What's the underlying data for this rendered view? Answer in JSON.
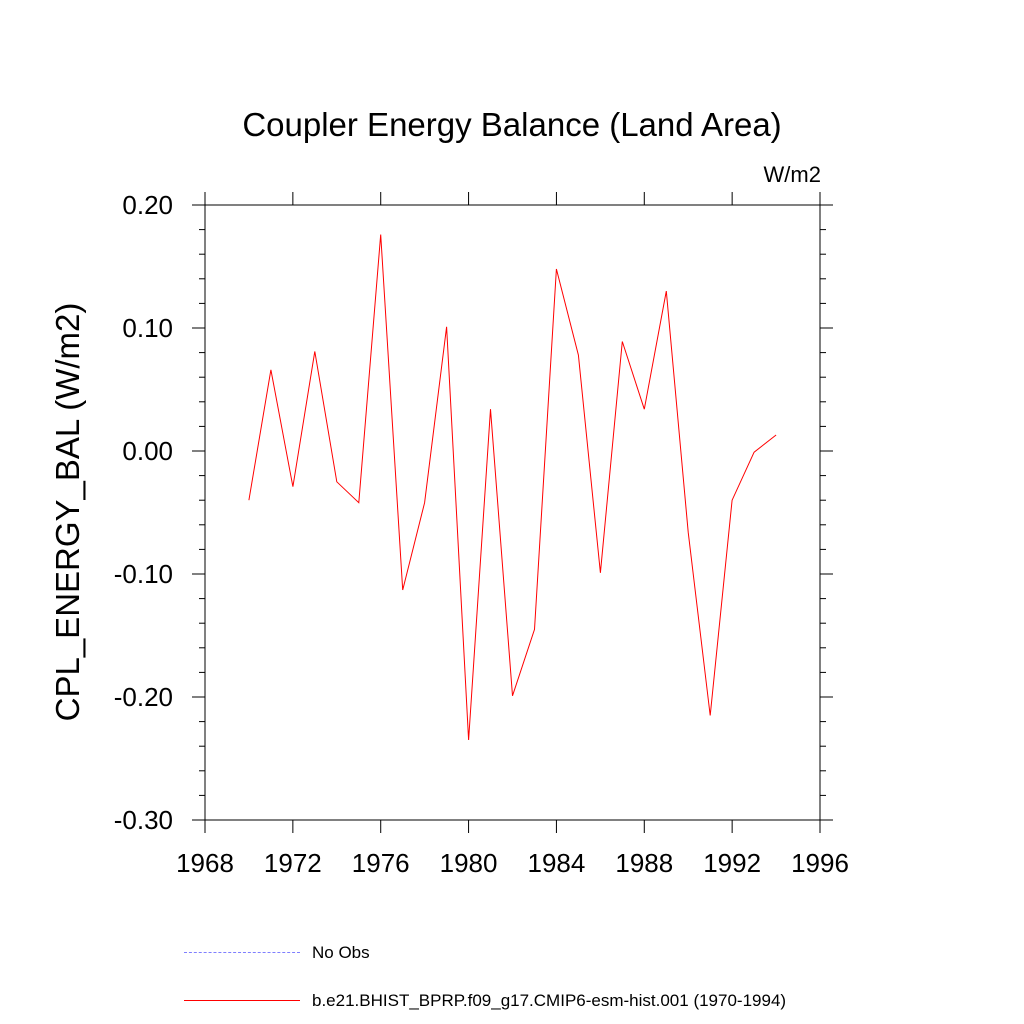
{
  "chart_data": {
    "type": "line",
    "title": "Coupler Energy Balance (Land Area)",
    "units": "W/m2",
    "ylabel": "CPL_ENERGY_BAL  (W/m2)",
    "xlabel": "",
    "xlim": [
      1968,
      1996
    ],
    "ylim": [
      -0.3,
      0.2
    ],
    "xticks": [
      1968,
      1972,
      1976,
      1980,
      1984,
      1988,
      1992,
      1996
    ],
    "xtick_labels": [
      "1968",
      "1972",
      "1976",
      "1980",
      "1984",
      "1988",
      "1992",
      "1996"
    ],
    "yticks": [
      0.2,
      0.1,
      0.0,
      -0.1,
      -0.2,
      -0.3
    ],
    "ytick_labels": [
      "0.20",
      "0.10",
      "0.00",
      "-0.10",
      "-0.20",
      "-0.30"
    ],
    "series": [
      {
        "name": "b.e21.BHIST_BPRP.f09_g17.CMIP6-esm-hist.001 (1970-1994)",
        "color": "#ff0000",
        "x": [
          1970,
          1971,
          1972,
          1973,
          1974,
          1975,
          1976,
          1977,
          1978,
          1979,
          1980,
          1981,
          1982,
          1983,
          1984,
          1985,
          1986,
          1987,
          1988,
          1989,
          1990,
          1991,
          1992,
          1993,
          1994
        ],
        "values": [
          -0.04,
          0.066,
          -0.029,
          0.081,
          -0.025,
          -0.042,
          0.176,
          -0.113,
          -0.042,
          0.101,
          -0.235,
          0.034,
          -0.199,
          -0.145,
          0.148,
          0.078,
          -0.099,
          0.089,
          0.034,
          0.13,
          -0.066,
          -0.215,
          -0.04,
          -0.001,
          0.013
        ]
      }
    ],
    "legend": [
      {
        "label": "No Obs",
        "color": "#7f7fff",
        "dash": "dashed"
      },
      {
        "label": "b.e21.BHIST_BPRP.f09_g17.CMIP6-esm-hist.001 (1970-1994)",
        "color": "#ff0000",
        "dash": "solid"
      }
    ]
  }
}
